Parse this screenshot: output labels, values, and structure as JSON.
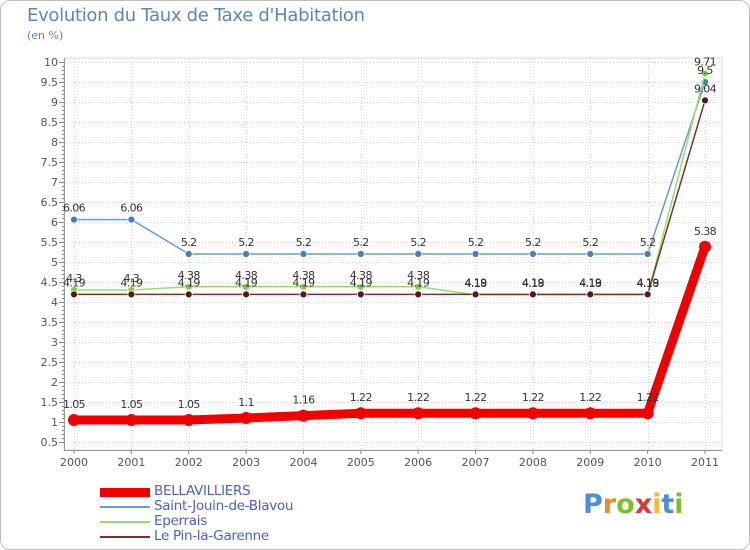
{
  "header": {
    "title": "Evolution du Taux de Taxe d'Habitation",
    "subtitle": "(en %)"
  },
  "brand": {
    "letters": [
      "P",
      "r",
      "o",
      "x",
      "i",
      "t",
      "i"
    ],
    "colors": [
      "#4a8fd6",
      "#f08a24",
      "#7bbf2f",
      "#d83a3a",
      "#f5b82e",
      "#4a8fd6",
      "#7bbf2f"
    ]
  },
  "chart_data": {
    "type": "line",
    "title": "Evolution du Taux de Taxe d'Habitation",
    "ylabel": "(en %)",
    "xlabel": "",
    "categories": [
      "2000",
      "2001",
      "2002",
      "2003",
      "2004",
      "2005",
      "2006",
      "2007",
      "2008",
      "2009",
      "2010",
      "2011"
    ],
    "yticks": [
      "0.5",
      "1",
      "1.5",
      "2",
      "2.5",
      "3",
      "3.5",
      "4",
      "4.5",
      "5",
      "5.5",
      "6",
      "6.5",
      "7",
      "7.5",
      "8",
      "8.5",
      "9",
      "9.5",
      "10"
    ],
    "ylim": [
      0.3,
      10.1
    ],
    "grid": true,
    "legend_position": "bottom-left",
    "series": [
      {
        "name": "Saint-Jouin-de-Blavou",
        "color": "#6b9bd1",
        "marker_color": "#3f7fc4",
        "values": [
          6.06,
          6.06,
          5.2,
          5.2,
          5.2,
          5.2,
          5.2,
          5.2,
          5.2,
          5.2,
          5.2,
          9.5
        ],
        "labels": [
          "6.06",
          "6.06",
          "5.2",
          "5.2",
          "5.2",
          "5.2",
          "5.2",
          "5.2",
          "5.2",
          "5.2",
          "5.2",
          "9.5"
        ]
      },
      {
        "name": "Eperrais",
        "color": "#9bdc6b",
        "marker_color": "#7ed13c",
        "values": [
          4.3,
          4.3,
          4.38,
          4.38,
          4.38,
          4.38,
          4.38,
          4.18,
          4.18,
          4.18,
          4.18,
          9.71
        ],
        "labels": [
          "4.3",
          "4.3",
          "4.38",
          "4.38",
          "4.38",
          "4.38",
          "4.38",
          "4.18",
          "4.18",
          "4.18",
          "4.18",
          "9.71"
        ]
      },
      {
        "name": "Le Pin-la-Garenne",
        "color": "#7a3030",
        "marker_color": "#5e1414",
        "values": [
          4.19,
          4.19,
          4.19,
          4.19,
          4.19,
          4.19,
          4.19,
          4.19,
          4.19,
          4.19,
          4.19,
          9.04
        ],
        "labels": [
          "4.19",
          "4.19",
          "4.19",
          "4.19",
          "4.19",
          "4.19",
          "4.19",
          "4.19",
          "4.19",
          "4.19",
          "4.19",
          "9.04"
        ]
      },
      {
        "name": "BELLAVILLIERS",
        "color": "#f00000",
        "marker_color": "#f00000",
        "values": [
          1.05,
          1.05,
          1.05,
          1.1,
          1.16,
          1.22,
          1.22,
          1.22,
          1.22,
          1.22,
          1.22,
          5.38
        ],
        "labels": [
          "1.05",
          "1.05",
          "1.05",
          "1.1",
          "1.16",
          "1.22",
          "1.22",
          "1.22",
          "1.22",
          "1.22",
          "1.22",
          "5.38"
        ]
      }
    ]
  },
  "legend": {
    "items": [
      {
        "label": "BELLAVILLIERS",
        "color": "#f00000",
        "thickness": 9
      },
      {
        "label": "Saint-Jouin-de-Blavou",
        "color": "#6b9bd1",
        "thickness": 2
      },
      {
        "label": "Eperrais",
        "color": "#9bdc6b",
        "thickness": 2
      },
      {
        "label": "Le Pin-la-Garenne",
        "color": "#7a3030",
        "thickness": 2
      }
    ]
  }
}
